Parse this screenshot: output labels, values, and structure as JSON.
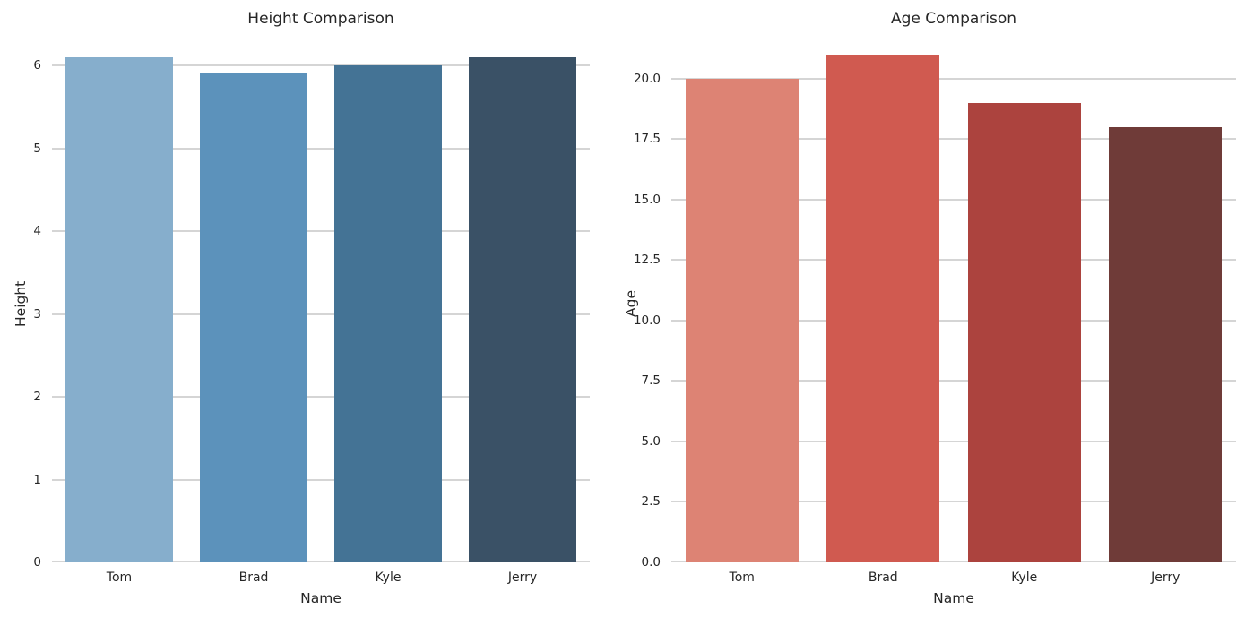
{
  "figure": {
    "background_color": "#ffffff",
    "text_color": "#262626",
    "grid_color": "#d5d5d5"
  },
  "chart_data": [
    {
      "type": "bar",
      "title": "Height Comparison",
      "xlabel": "Name",
      "ylabel": "Height",
      "categories": [
        "Tom",
        "Brad",
        "Kyle",
        "Jerry"
      ],
      "values": [
        6.1,
        5.9,
        6.0,
        6.1
      ],
      "bar_colors": [
        "#86aecc",
        "#5c92bb",
        "#447395",
        "#3a5166"
      ],
      "yticks": [
        0,
        1,
        2,
        3,
        4,
        5,
        6
      ],
      "ytick_labels": [
        "0",
        "1",
        "2",
        "3",
        "4",
        "5",
        "6"
      ],
      "ylim": [
        0,
        6.25
      ],
      "bar_width_fraction": 0.8,
      "grid": true,
      "legend": false
    },
    {
      "type": "bar",
      "title": "Age Comparison",
      "xlabel": "Name",
      "ylabel": "Age",
      "categories": [
        "Tom",
        "Brad",
        "Kyle",
        "Jerry"
      ],
      "values": [
        20,
        21,
        19,
        18
      ],
      "bar_colors": [
        "#dd8374",
        "#d05a50",
        "#ac433e",
        "#6f3b38"
      ],
      "yticks": [
        0,
        2.5,
        5,
        7.5,
        10,
        12.5,
        15,
        17.5,
        20
      ],
      "ytick_labels": [
        "0.0",
        "2.5",
        "5.0",
        "7.5",
        "10.0",
        "12.5",
        "15.0",
        "17.5",
        "20.0"
      ],
      "ylim": [
        0,
        21.4
      ],
      "bar_width_fraction": 0.8,
      "grid": true,
      "legend": false
    }
  ]
}
